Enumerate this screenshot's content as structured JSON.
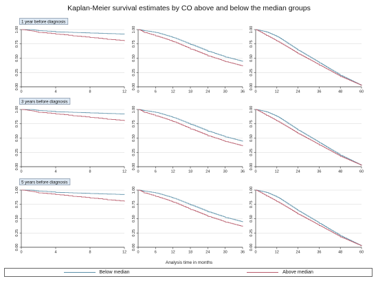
{
  "title": "Kaplan-Meier survival estimates by CO above and below the median groups",
  "xlabel": "Analysis time in months",
  "colors": {
    "below": "#5a8fa8",
    "above": "#b85a6a"
  },
  "chart_data": {
    "type": "line",
    "title": "Kaplan-Meier survival estimates by CO above and below the median groups",
    "xlabel": "Analysis time in months",
    "ylabel": "",
    "legend_position": "bottom",
    "series_names": [
      "Below median",
      "Above median"
    ],
    "y_ticks": [
      "0.00",
      "0.25",
      "0.50",
      "0.75",
      "1.00"
    ],
    "ylim": [
      0,
      1
    ],
    "rows": [
      {
        "subtitle": "1 year before diagnosis",
        "panels": [
          {
            "xlim": [
              0,
              12
            ],
            "x_ticks": [
              0,
              4,
              8,
              12
            ],
            "series": [
              {
                "name": "Below median",
                "x": [
                  0,
                  1,
                  2,
                  4,
                  6,
                  8,
                  10,
                  12
                ],
                "y": [
                  1.0,
                  1.0,
                  0.98,
                  0.96,
                  0.95,
                  0.94,
                  0.93,
                  0.92
                ]
              },
              {
                "name": "Above median",
                "x": [
                  0,
                  1,
                  2,
                  4,
                  6,
                  8,
                  10,
                  12
                ],
                "y": [
                  1.0,
                  0.98,
                  0.95,
                  0.92,
                  0.89,
                  0.86,
                  0.83,
                  0.8
                ]
              }
            ]
          },
          {
            "xlim": [
              0,
              36
            ],
            "x_ticks": [
              0,
              6,
              12,
              18,
              24,
              30,
              36
            ],
            "series": [
              {
                "name": "Below median",
                "x": [
                  0,
                  2,
                  6,
                  12,
                  18,
                  24,
                  30,
                  36
                ],
                "y": [
                  1.0,
                  0.98,
                  0.95,
                  0.86,
                  0.74,
                  0.62,
                  0.52,
                  0.44
                ]
              },
              {
                "name": "Above median",
                "x": [
                  0,
                  2,
                  6,
                  12,
                  18,
                  24,
                  30,
                  36
                ],
                "y": [
                  1.0,
                  0.95,
                  0.89,
                  0.79,
                  0.66,
                  0.54,
                  0.44,
                  0.36
                ]
              }
            ]
          },
          {
            "xlim": [
              0,
              60
            ],
            "x_ticks": [
              0,
              12,
              24,
              36,
              48,
              60
            ],
            "series": [
              {
                "name": "Below median",
                "x": [
                  0,
                  6,
                  12,
                  24,
                  36,
                  48,
                  60
                ],
                "y": [
                  1.0,
                  0.96,
                  0.88,
                  0.64,
                  0.42,
                  0.2,
                  0.02
                ]
              },
              {
                "name": "Above median",
                "x": [
                  0,
                  6,
                  12,
                  24,
                  36,
                  48,
                  60
                ],
                "y": [
                  1.0,
                  0.9,
                  0.8,
                  0.58,
                  0.38,
                  0.18,
                  0.02
                ]
              }
            ]
          }
        ]
      },
      {
        "subtitle": "3 years before diagnosis",
        "panels": [
          {
            "xlim": [
              0,
              12
            ],
            "x_ticks": [
              0,
              4,
              8,
              12
            ],
            "series": [
              {
                "name": "Below median",
                "x": [
                  0,
                  1,
                  2,
                  4,
                  6,
                  8,
                  10,
                  12
                ],
                "y": [
                  1.0,
                  1.0,
                  0.98,
                  0.96,
                  0.95,
                  0.94,
                  0.93,
                  0.92
                ]
              },
              {
                "name": "Above median",
                "x": [
                  0,
                  1,
                  2,
                  4,
                  6,
                  8,
                  10,
                  12
                ],
                "y": [
                  1.0,
                  0.98,
                  0.95,
                  0.92,
                  0.89,
                  0.86,
                  0.83,
                  0.8
                ]
              }
            ]
          },
          {
            "xlim": [
              0,
              36
            ],
            "x_ticks": [
              0,
              6,
              12,
              18,
              24,
              30,
              36
            ],
            "series": [
              {
                "name": "Below median",
                "x": [
                  0,
                  2,
                  6,
                  12,
                  18,
                  24,
                  30,
                  36
                ],
                "y": [
                  1.0,
                  0.98,
                  0.95,
                  0.86,
                  0.74,
                  0.62,
                  0.52,
                  0.44
                ]
              },
              {
                "name": "Above median",
                "x": [
                  0,
                  2,
                  6,
                  12,
                  18,
                  24,
                  30,
                  36
                ],
                "y": [
                  1.0,
                  0.95,
                  0.89,
                  0.79,
                  0.66,
                  0.54,
                  0.44,
                  0.36
                ]
              }
            ]
          },
          {
            "xlim": [
              0,
              60
            ],
            "x_ticks": [
              0,
              12,
              24,
              36,
              48,
              60
            ],
            "series": [
              {
                "name": "Below median",
                "x": [
                  0,
                  6,
                  12,
                  24,
                  36,
                  48,
                  60
                ],
                "y": [
                  1.0,
                  0.96,
                  0.88,
                  0.64,
                  0.42,
                  0.2,
                  0.02
                ]
              },
              {
                "name": "Above median",
                "x": [
                  0,
                  6,
                  12,
                  24,
                  36,
                  48,
                  60
                ],
                "y": [
                  1.0,
                  0.9,
                  0.8,
                  0.58,
                  0.38,
                  0.18,
                  0.02
                ]
              }
            ]
          }
        ]
      },
      {
        "subtitle": "5 years before diagnosis",
        "panels": [
          {
            "xlim": [
              0,
              12
            ],
            "x_ticks": [
              0,
              4,
              8,
              12
            ],
            "series": [
              {
                "name": "Below median",
                "x": [
                  0,
                  1,
                  2,
                  4,
                  6,
                  8,
                  10,
                  12
                ],
                "y": [
                  1.0,
                  1.0,
                  0.98,
                  0.96,
                  0.95,
                  0.94,
                  0.93,
                  0.92
                ]
              },
              {
                "name": "Above median",
                "x": [
                  0,
                  1,
                  2,
                  4,
                  6,
                  8,
                  10,
                  12
                ],
                "y": [
                  1.0,
                  0.98,
                  0.95,
                  0.92,
                  0.89,
                  0.86,
                  0.83,
                  0.8
                ]
              }
            ]
          },
          {
            "xlim": [
              0,
              36
            ],
            "x_ticks": [
              0,
              6,
              12,
              18,
              24,
              30,
              36
            ],
            "series": [
              {
                "name": "Below median",
                "x": [
                  0,
                  2,
                  6,
                  12,
                  18,
                  24,
                  30,
                  36
                ],
                "y": [
                  1.0,
                  0.98,
                  0.95,
                  0.86,
                  0.74,
                  0.62,
                  0.52,
                  0.44
                ]
              },
              {
                "name": "Above median",
                "x": [
                  0,
                  2,
                  6,
                  12,
                  18,
                  24,
                  30,
                  36
                ],
                "y": [
                  1.0,
                  0.95,
                  0.89,
                  0.79,
                  0.66,
                  0.54,
                  0.44,
                  0.36
                ]
              }
            ]
          },
          {
            "xlim": [
              0,
              60
            ],
            "x_ticks": [
              0,
              12,
              24,
              36,
              48,
              60
            ],
            "series": [
              {
                "name": "Below median",
                "x": [
                  0,
                  6,
                  12,
                  24,
                  36,
                  48,
                  60
                ],
                "y": [
                  1.0,
                  0.96,
                  0.88,
                  0.64,
                  0.42,
                  0.2,
                  0.02
                ]
              },
              {
                "name": "Above median",
                "x": [
                  0,
                  6,
                  12,
                  24,
                  36,
                  48,
                  60
                ],
                "y": [
                  1.0,
                  0.9,
                  0.8,
                  0.58,
                  0.38,
                  0.18,
                  0.02
                ]
              }
            ]
          }
        ]
      }
    ]
  },
  "legend": {
    "below_label": "Below median",
    "above_label": "Above median"
  }
}
